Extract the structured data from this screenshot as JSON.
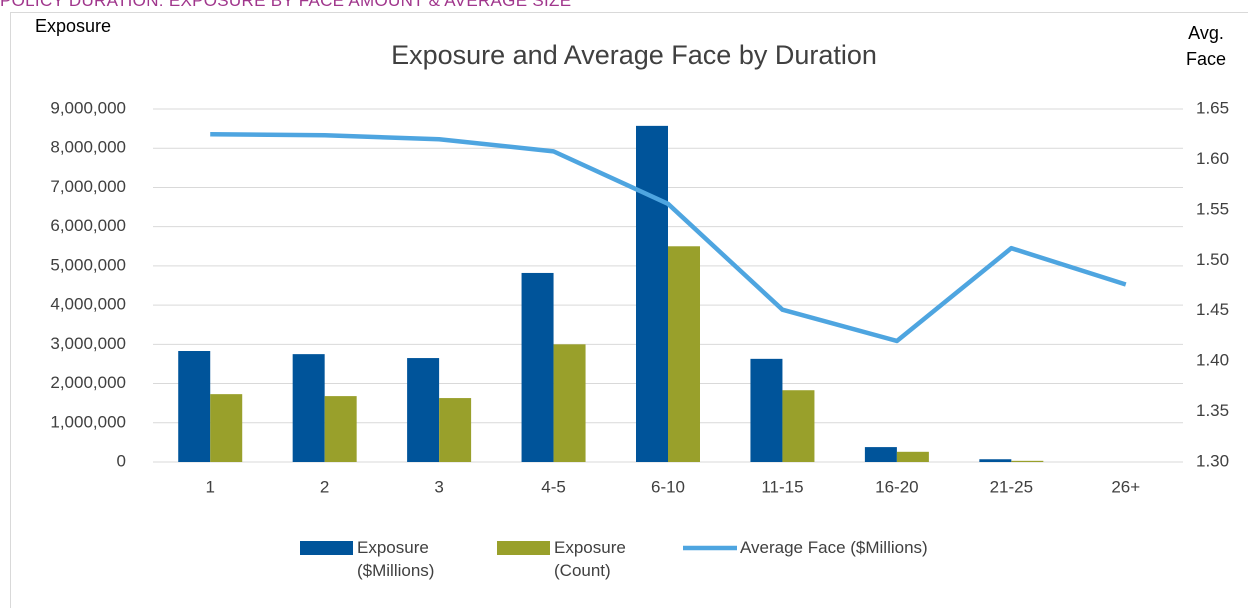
{
  "header": "POLICY DURATION: EXPOSURE BY FACE AMOUNT & AVERAGE SIZE",
  "chart_data": {
    "type": "bar_line",
    "title": "Exposure and Average Face by Duration",
    "ylabel": "Exposure",
    "y2label": "Avg. Face",
    "categories": [
      "1",
      "2",
      "3",
      "4-5",
      "6-10",
      "11-15",
      "16-20",
      "21-25",
      "26+"
    ],
    "series": [
      {
        "name": "Exposure ($Millions)",
        "type": "bar",
        "color": "#00549a",
        "values": [
          2830000,
          2750000,
          2650000,
          4820000,
          8570000,
          2630000,
          380000,
          70000,
          0
        ]
      },
      {
        "name": "Exposure (Count)",
        "type": "bar",
        "color": "#99a02b",
        "values": [
          1730000,
          1680000,
          1630000,
          3000000,
          5500000,
          1830000,
          260000,
          30000,
          0
        ]
      },
      {
        "name": "Average Face ($Millions)",
        "type": "line",
        "axis": "y2",
        "color": "#4ea5e0",
        "values": [
          1.625,
          1.624,
          1.62,
          1.608,
          1.556,
          1.451,
          1.42,
          1.512,
          1.476
        ]
      }
    ],
    "ylim": [
      0,
      9000000
    ],
    "yticks": [
      0,
      {
        "value": 1000000,
        "label": "1,000,000"
      },
      {
        "value": 2000000,
        "label": "2,000,000"
      },
      {
        "value": 3000000,
        "label": "3,000,000"
      },
      {
        "value": 4000000,
        "label": "4,000,000"
      },
      {
        "value": 5000000,
        "label": "5,000,000"
      },
      {
        "value": 6000000,
        "label": "6,000,000"
      },
      {
        "value": 7000000,
        "label": "7,000,000"
      },
      {
        "value": 8000000,
        "label": "8,000,000"
      },
      {
        "value": 9000000,
        "label": "9,000,000"
      }
    ],
    "y2lim": [
      1.3,
      1.65
    ],
    "y2ticks": [
      {
        "value": 1.3,
        "label": "1.30"
      },
      1.35,
      {
        "value": 1.4,
        "label": "1.40"
      },
      1.45,
      {
        "value": 1.5,
        "label": "1.50"
      },
      1.55,
      {
        "value": 1.6,
        "label": "1.60"
      },
      1.65
    ],
    "grid": true,
    "legend": "bottom"
  }
}
